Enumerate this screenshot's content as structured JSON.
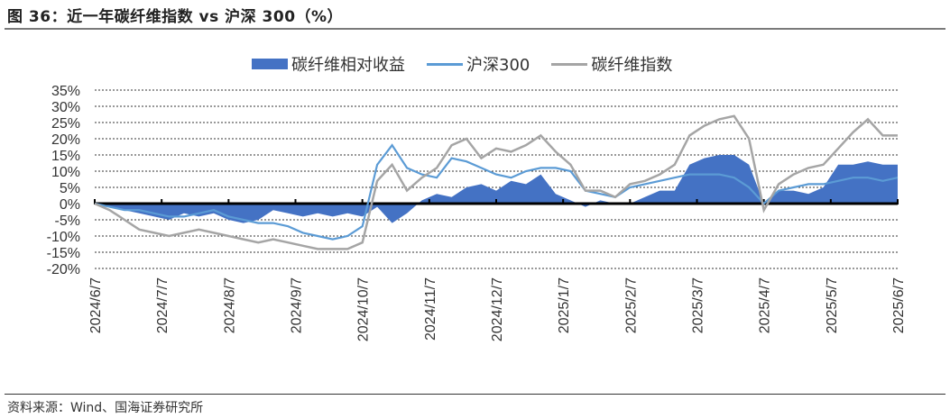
{
  "header": {
    "title": "图 36：近一年碳纤维指数 vs 沪深 300（%）"
  },
  "footer": {
    "source": "资料来源：Wind、国海证券研究所"
  },
  "colors": {
    "relative": "#4472C4",
    "hs300": "#5B9BD5",
    "cf_index": "#A5A5A5",
    "grid": "#333333",
    "axis": "#000000"
  },
  "legend": [
    {
      "name": "碳纤维相对收益",
      "type": "area",
      "color": "#4472C4"
    },
    {
      "name": "沪深300",
      "type": "line",
      "color": "#5B9BD5"
    },
    {
      "name": "碳纤维指数",
      "type": "line",
      "color": "#A5A5A5"
    }
  ],
  "chart_data": {
    "type": "line",
    "title": "近一年碳纤维指数 vs 沪深 300（%）",
    "xlabel": "",
    "ylabel": "",
    "ylim": [
      -20,
      35
    ],
    "yticks": [
      "35%",
      "30%",
      "25%",
      "20%",
      "15%",
      "10%",
      "5%",
      "0%",
      "-5%",
      "-10%",
      "-15%",
      "-20%"
    ],
    "xticks": [
      "2024/6/7",
      "2024/7/7",
      "2024/8/7",
      "2024/9/7",
      "2024/10/7",
      "2024/11/7",
      "2024/12/7",
      "2025/1/7",
      "2025/2/7",
      "2025/3/7",
      "2025/4/7",
      "2025/5/7",
      "2025/6/7"
    ],
    "grid": true,
    "legend_position": "top",
    "x": [
      "2024/6/7",
      "2024/6/14",
      "2024/6/21",
      "2024/6/28",
      "2024/7/5",
      "2024/7/12",
      "2024/7/19",
      "2024/7/26",
      "2024/8/2",
      "2024/8/9",
      "2024/8/16",
      "2024/8/23",
      "2024/8/30",
      "2024/9/6",
      "2024/9/13",
      "2024/9/20",
      "2024/9/24",
      "2024/9/27",
      "2024/9/30",
      "2024/10/8",
      "2024/10/11",
      "2024/10/18",
      "2024/10/25",
      "2024/11/1",
      "2024/11/8",
      "2024/11/15",
      "2024/11/22",
      "2024/11/29",
      "2024/12/6",
      "2024/12/13",
      "2024/12/20",
      "2024/12/27",
      "2025/1/3",
      "2025/1/10",
      "2025/1/17",
      "2025/1/24",
      "2025/2/7",
      "2025/2/14",
      "2025/2/21",
      "2025/2/28",
      "2025/3/7",
      "2025/3/14",
      "2025/3/21",
      "2025/3/28",
      "2025/4/3",
      "2025/4/7",
      "2025/4/11",
      "2025/4/18",
      "2025/4/25",
      "2025/5/2",
      "2025/5/9",
      "2025/5/16",
      "2025/5/23",
      "2025/5/30",
      "2025/6/6"
    ],
    "series": [
      {
        "name": "碳纤维相对收益",
        "type": "area",
        "values": [
          0,
          -1,
          -2,
          -3,
          -4,
          -5,
          -3,
          -4,
          -3,
          -5,
          -6,
          -5,
          -2,
          -3,
          -4,
          -3,
          -4,
          -3,
          -4,
          -1,
          -6,
          -3,
          1,
          3,
          2,
          5,
          6,
          4,
          7,
          6,
          9,
          3,
          1,
          -1,
          1,
          0,
          0,
          2,
          4,
          4,
          12,
          14,
          15,
          15,
          12,
          0,
          4,
          4,
          3,
          5,
          12,
          12,
          13,
          12,
          12
        ]
      },
      {
        "name": "沪深300",
        "type": "line",
        "values": [
          0,
          -1,
          -2,
          -2,
          -3,
          -4,
          -4,
          -3,
          -2,
          -4,
          -5,
          -6,
          -6,
          -7,
          -9,
          -10,
          -11,
          -10,
          -7,
          12,
          18,
          11,
          9,
          8,
          14,
          13,
          11,
          9,
          8,
          10,
          11,
          11,
          10,
          4,
          3,
          2,
          5,
          6,
          7,
          8,
          9,
          9,
          9,
          8,
          5,
          0,
          4,
          5,
          6,
          6,
          7,
          8,
          8,
          7,
          8
        ]
      },
      {
        "name": "碳纤维指数",
        "type": "line",
        "values": [
          0,
          -2,
          -5,
          -8,
          -9,
          -10,
          -9,
          -8,
          -9,
          -10,
          -11,
          -12,
          -11,
          -12,
          -13,
          -14,
          -14,
          -14,
          -12,
          7,
          12,
          4,
          8,
          11,
          18,
          20,
          14,
          17,
          16,
          18,
          21,
          16,
          12,
          4,
          4,
          2,
          6,
          7,
          9,
          12,
          21,
          24,
          26,
          27,
          20,
          -2,
          6,
          9,
          11,
          12,
          17,
          22,
          26,
          21,
          21
        ]
      }
    ]
  }
}
